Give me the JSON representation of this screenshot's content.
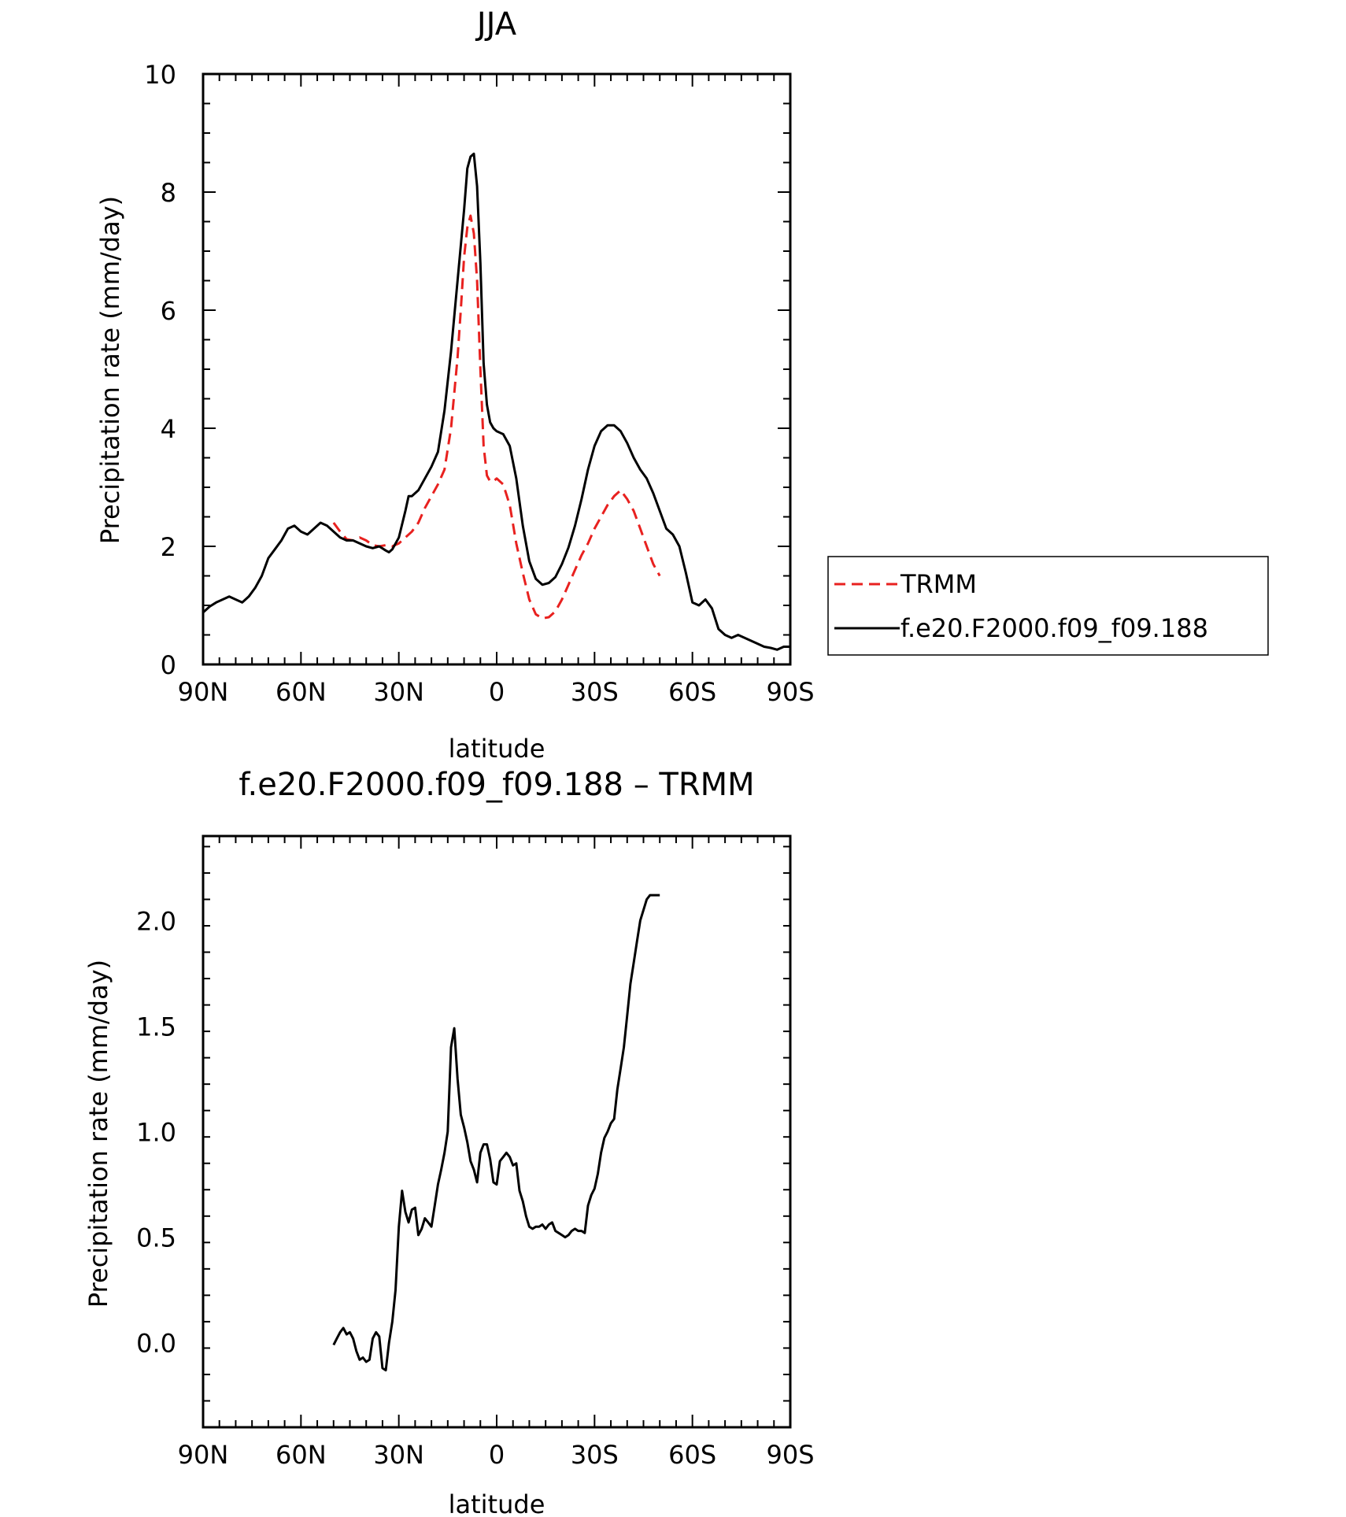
{
  "chart_data": [
    {
      "type": "line",
      "title": "JJA",
      "xlabel": "latitude",
      "ylabel": "Precipitation rate (mm/day)",
      "xlim": [
        90,
        -90
      ],
      "ylim": [
        0,
        10
      ],
      "xticks": [
        {
          "value": 90,
          "label": "90N"
        },
        {
          "value": 60,
          "label": "60N"
        },
        {
          "value": 30,
          "label": "30N"
        },
        {
          "value": 0,
          "label": "0"
        },
        {
          "value": -30,
          "label": "30S"
        },
        {
          "value": -60,
          "label": "60S"
        },
        {
          "value": -90,
          "label": "90S"
        }
      ],
      "yticks": [
        {
          "value": 0,
          "label": "0"
        },
        {
          "value": 2,
          "label": "2"
        },
        {
          "value": 4,
          "label": "4"
        },
        {
          "value": 6,
          "label": "6"
        },
        {
          "value": 8,
          "label": "8"
        },
        {
          "value": 10,
          "label": "10"
        }
      ],
      "grid": false,
      "legend": {
        "placement": "right",
        "entries": [
          "TRMM",
          "f.e20.F2000.f09_f09.188"
        ]
      },
      "series": [
        {
          "name": "TRMM",
          "color": "#e8211f",
          "style": "dashed",
          "x": [
            50,
            48,
            46,
            44,
            42,
            40,
            38,
            36,
            34,
            32,
            30,
            28,
            26,
            24,
            22,
            20,
            18,
            16,
            14,
            12,
            11,
            10,
            9,
            8,
            7,
            6,
            5,
            4,
            3,
            2,
            1,
            0,
            -2,
            -4,
            -6,
            -8,
            -10,
            -12,
            -14,
            -16,
            -18,
            -20,
            -22,
            -24,
            -26,
            -28,
            -30,
            -32,
            -34,
            -36,
            -38,
            -40,
            -42,
            -44,
            -46,
            -48,
            -50
          ],
          "y": [
            2.4,
            2.25,
            2.12,
            2.1,
            2.15,
            2.1,
            2.02,
            2.0,
            2.02,
            2.0,
            2.05,
            2.15,
            2.25,
            2.4,
            2.65,
            2.85,
            3.05,
            3.3,
            4.0,
            5.2,
            6.0,
            6.9,
            7.4,
            7.6,
            7.3,
            6.5,
            5.0,
            3.7,
            3.2,
            3.1,
            3.1,
            3.15,
            3.05,
            2.7,
            2.05,
            1.55,
            1.1,
            0.85,
            0.78,
            0.8,
            0.9,
            1.1,
            1.35,
            1.6,
            1.85,
            2.05,
            2.3,
            2.5,
            2.7,
            2.85,
            2.95,
            2.8,
            2.6,
            2.3,
            2.0,
            1.7,
            1.5
          ]
        },
        {
          "name": "f.e20.F2000.f09_f09.188",
          "color": "#000000",
          "style": "solid",
          "x": [
            90,
            88,
            86,
            84,
            82,
            80,
            78,
            76,
            74,
            72,
            70,
            68,
            66,
            64,
            62,
            60,
            58,
            56,
            54,
            52,
            50,
            48,
            46,
            44,
            42,
            40,
            38,
            36,
            34,
            33,
            32,
            30,
            28,
            27,
            26,
            24,
            22,
            20,
            18,
            16,
            14,
            12,
            10,
            9,
            8,
            7,
            6,
            5,
            4,
            3,
            2,
            1,
            0,
            -2,
            -4,
            -6,
            -8,
            -10,
            -12,
            -14,
            -16,
            -18,
            -20,
            -22,
            -24,
            -26,
            -28,
            -30,
            -32,
            -34,
            -36,
            -38,
            -40,
            -42,
            -44,
            -46,
            -48,
            -50,
            -52,
            -54,
            -56,
            -58,
            -60,
            -62,
            -64,
            -66,
            -68,
            -70,
            -72,
            -74,
            -76,
            -78,
            -80,
            -82,
            -84,
            -86,
            -88,
            -90
          ],
          "y": [
            0.88,
            0.98,
            1.05,
            1.1,
            1.15,
            1.1,
            1.05,
            1.15,
            1.3,
            1.5,
            1.8,
            1.95,
            2.1,
            2.3,
            2.35,
            2.25,
            2.2,
            2.3,
            2.4,
            2.35,
            2.25,
            2.15,
            2.1,
            2.1,
            2.05,
            2.0,
            1.97,
            2.0,
            1.93,
            1.9,
            1.95,
            2.15,
            2.6,
            2.85,
            2.85,
            2.95,
            3.15,
            3.35,
            3.6,
            4.3,
            5.3,
            6.5,
            7.7,
            8.4,
            8.6,
            8.65,
            8.1,
            6.8,
            5.1,
            4.4,
            4.1,
            4.0,
            3.95,
            3.9,
            3.7,
            3.15,
            2.35,
            1.75,
            1.45,
            1.35,
            1.38,
            1.48,
            1.7,
            1.98,
            2.35,
            2.8,
            3.3,
            3.7,
            3.95,
            4.05,
            4.05,
            3.95,
            3.75,
            3.5,
            3.3,
            3.15,
            2.9,
            2.6,
            2.3,
            2.2,
            2.0,
            1.55,
            1.05,
            1.0,
            1.1,
            0.95,
            0.6,
            0.5,
            0.45,
            0.5,
            0.45,
            0.4,
            0.35,
            0.3,
            0.28,
            0.25,
            0.3,
            0.3
          ]
        }
      ]
    },
    {
      "type": "line",
      "title": "f.e20.F2000.f09_f09.188 – TRMM",
      "xlabel": "latitude",
      "ylabel": "Precipitation rate (mm/day)",
      "xlim": [
        90,
        -90
      ],
      "ylim": [
        -0.4,
        2.4
      ],
      "xticks": [
        {
          "value": 90,
          "label": "90N"
        },
        {
          "value": 60,
          "label": "60N"
        },
        {
          "value": 30,
          "label": "30N"
        },
        {
          "value": 0,
          "label": "0"
        },
        {
          "value": -30,
          "label": "30S"
        },
        {
          "value": -60,
          "label": "60S"
        },
        {
          "value": -90,
          "label": "90S"
        }
      ],
      "yticks": [
        {
          "value": 0.0,
          "label": "0.0"
        },
        {
          "value": 0.5,
          "label": "0.5"
        },
        {
          "value": 1.0,
          "label": "1.0"
        },
        {
          "value": 1.5,
          "label": "1.5"
        },
        {
          "value": 2.0,
          "label": "2.0"
        }
      ],
      "grid": false,
      "series": [
        {
          "color": "#000000",
          "style": "solid",
          "x": [
            50,
            49,
            48,
            47,
            46,
            45,
            44,
            43,
            42,
            41,
            40,
            39,
            38,
            37,
            36,
            35,
            34,
            33,
            32,
            31,
            30,
            29,
            28,
            27,
            26,
            25,
            24,
            23,
            22,
            21,
            20,
            19,
            18,
            17,
            16,
            15,
            14,
            13,
            12,
            11,
            10,
            9,
            8,
            7,
            6,
            5,
            4,
            3,
            2,
            1,
            0,
            -1,
            -2,
            -3,
            -4,
            -5,
            -6,
            -7,
            -8,
            -9,
            -10,
            -11,
            -12,
            -13,
            -14,
            -15,
            -16,
            -17,
            -18,
            -19,
            -20,
            -21,
            -22,
            -23,
            -24,
            -25,
            -26,
            -27,
            -28,
            -29,
            -30,
            -31,
            -32,
            -33,
            -34,
            -35,
            -36,
            -37,
            -38,
            -39,
            -40,
            -41,
            -42,
            -43,
            -44,
            -45,
            -46,
            -47,
            -48,
            -49,
            -50
          ],
          "y": [
            -0.01,
            0.02,
            0.05,
            0.07,
            0.04,
            0.05,
            0.02,
            -0.04,
            -0.08,
            -0.07,
            -0.09,
            -0.08,
            0.02,
            0.05,
            0.03,
            -0.12,
            -0.13,
            0.0,
            0.1,
            0.25,
            0.55,
            0.72,
            0.62,
            0.57,
            0.63,
            0.64,
            0.51,
            0.54,
            0.59,
            0.57,
            0.55,
            0.65,
            0.75,
            0.82,
            0.9,
            1.0,
            1.4,
            1.49,
            1.25,
            1.08,
            1.02,
            0.95,
            0.86,
            0.82,
            0.76,
            0.9,
            0.94,
            0.94,
            0.87,
            0.76,
            0.75,
            0.86,
            0.88,
            0.9,
            0.88,
            0.84,
            0.85,
            0.72,
            0.67,
            0.6,
            0.55,
            0.54,
            0.55,
            0.55,
            0.56,
            0.54,
            0.56,
            0.57,
            0.53,
            0.52,
            0.51,
            0.5,
            0.51,
            0.53,
            0.54,
            0.53,
            0.53,
            0.52,
            0.65,
            0.7,
            0.73,
            0.8,
            0.9,
            0.97,
            1.0,
            1.04,
            1.06,
            1.2,
            1.3,
            1.4,
            1.55,
            1.7,
            1.8,
            1.9,
            2.0,
            2.05,
            2.1,
            2.12,
            2.12,
            2.12,
            2.12
          ]
        }
      ]
    }
  ]
}
